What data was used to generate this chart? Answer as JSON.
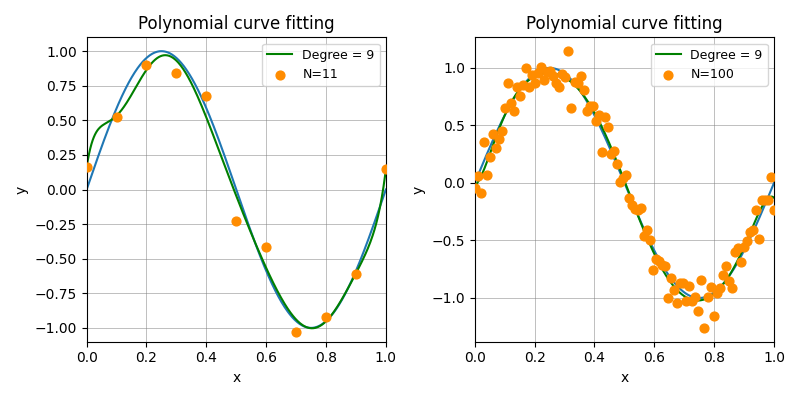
{
  "title": "Polynomial curve fitting",
  "xlabel": "x",
  "ylabel": "y",
  "degree": 9,
  "N1": 11,
  "N2": 100,
  "legend1_dot": "N=11",
  "legend1_line": "Degree = 9",
  "legend2_dot": "N=100",
  "legend2_line": "Degree = 9",
  "dot_color": "#FF8C00",
  "true_line_color": "#1f77b4",
  "fit_line_color": "green",
  "seed1": 1,
  "seed2": 2,
  "noise_std1": 0.1,
  "noise_std2": 0.1,
  "xlim": [
    0.0,
    1.0
  ],
  "dot_size": 40,
  "figsize": [
    8.0,
    4.0
  ],
  "dpi": 100
}
